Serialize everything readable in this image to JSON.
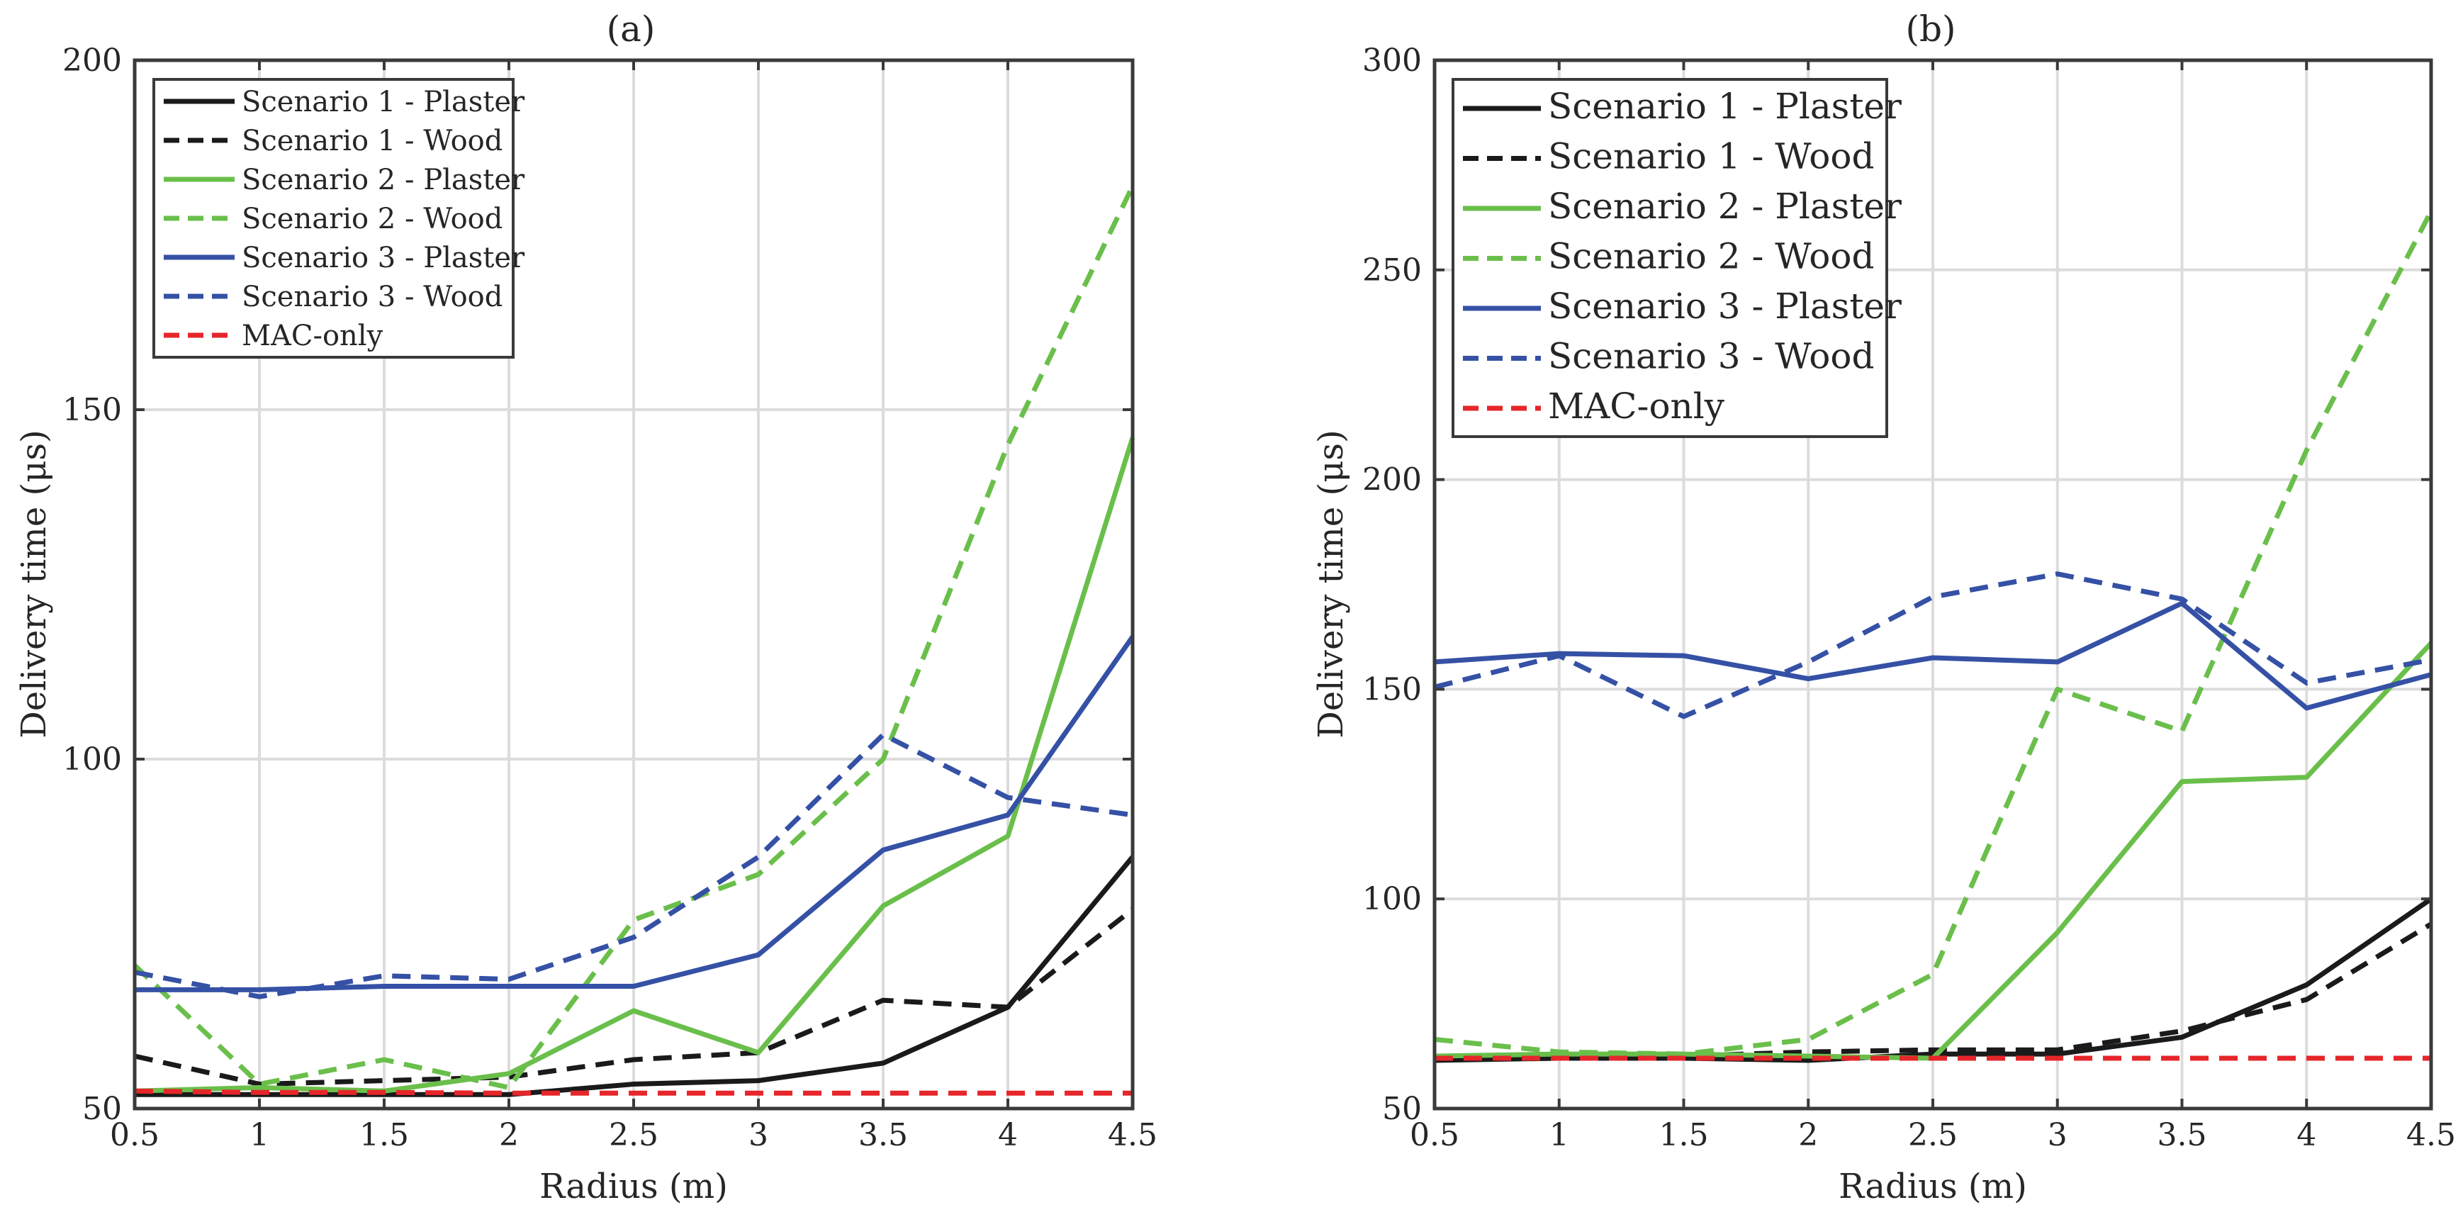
{
  "chart_data": [
    {
      "type": "line",
      "panel": "a",
      "title": "(a)",
      "xlabel": "Radius (m)",
      "ylabel": "Delivery time (μs)",
      "xlim": [
        0.5,
        4.5
      ],
      "ylim": [
        50,
        200
      ],
      "xticks": [
        0.5,
        1,
        1.5,
        2,
        2.5,
        3,
        3.5,
        4,
        4.5
      ],
      "xtick_labels": [
        "0.5",
        "1",
        "1.5",
        "2",
        "2.5",
        "3",
        "3.5",
        "4",
        "4.5"
      ],
      "yticks": [
        50,
        100,
        150,
        200
      ],
      "ytick_labels": [
        "50",
        "100",
        "150",
        "200"
      ],
      "grid": true,
      "legend_position": "top-left",
      "x": [
        0.5,
        1,
        1.5,
        2,
        2.5,
        3,
        3.5,
        4,
        4.5
      ],
      "series": [
        {
          "name": "Scenario 1 - Plaster",
          "color": "#1a1a1a",
          "dash": "solid",
          "values": [
            52,
            52,
            52,
            52,
            53.5,
            54,
            56.5,
            64.5,
            86
          ]
        },
        {
          "name": "Scenario 1 - Wood",
          "color": "#1a1a1a",
          "dash": "dashed",
          "values": [
            57.5,
            53.5,
            54,
            54.5,
            57,
            58,
            65.5,
            64.5,
            78.5
          ]
        },
        {
          "name": "Scenario 2 - Plaster",
          "color": "#6abf4b",
          "dash": "solid",
          "values": [
            52.5,
            53,
            52.5,
            55,
            64,
            58,
            79,
            89,
            146
          ]
        },
        {
          "name": "Scenario 2 - Wood",
          "color": "#6abf4b",
          "dash": "dashed",
          "values": [
            70.5,
            53.5,
            57,
            53,
            77,
            83.5,
            100,
            145,
            182
          ]
        },
        {
          "name": "Scenario 3 - Plaster",
          "color": "#3551a5",
          "dash": "solid",
          "values": [
            67,
            67,
            67.5,
            67.5,
            67.5,
            72,
            87,
            92,
            117.5
          ]
        },
        {
          "name": "Scenario 3 - Wood",
          "color": "#3551a5",
          "dash": "dashed",
          "values": [
            69.5,
            66,
            69,
            68.5,
            74.5,
            86,
            103.5,
            94.5,
            92
          ]
        },
        {
          "name": "MAC-only",
          "color": "#e6262a",
          "dash": "dashed",
          "values": [
            52.5,
            52.3,
            52.3,
            52.2,
            52.2,
            52.2,
            52.2,
            52.2,
            52.2
          ]
        }
      ]
    },
    {
      "type": "line",
      "panel": "b",
      "title": "(b)",
      "xlabel": "Radius (m)",
      "ylabel": "Delivery time (μs)",
      "xlim": [
        0.5,
        4.5
      ],
      "ylim": [
        50,
        300
      ],
      "xticks": [
        0.5,
        1,
        1.5,
        2,
        2.5,
        3,
        3.5,
        4,
        4.5
      ],
      "xtick_labels": [
        "0.5",
        "1",
        "1.5",
        "2",
        "2.5",
        "3",
        "3.5",
        "4",
        "4.5"
      ],
      "yticks": [
        50,
        100,
        150,
        200,
        250,
        300
      ],
      "ytick_labels": [
        "50",
        "100",
        "150",
        "200",
        "250",
        "300"
      ],
      "grid": true,
      "legend_position": "top-left",
      "x": [
        0.5,
        1,
        1.5,
        2,
        2.5,
        3,
        3.5,
        4,
        4.5
      ],
      "series": [
        {
          "name": "Scenario 1 - Plaster",
          "color": "#1a1a1a",
          "dash": "solid",
          "values": [
            61.5,
            62,
            62,
            61.5,
            63,
            63,
            67,
            79.5,
            100
          ]
        },
        {
          "name": "Scenario 1 - Wood",
          "color": "#1a1a1a",
          "dash": "dashed",
          "values": [
            62.5,
            62.5,
            62.5,
            63.5,
            64,
            64,
            68.5,
            76,
            94
          ]
        },
        {
          "name": "Scenario 2 - Plaster",
          "color": "#6abf4b",
          "dash": "solid",
          "values": [
            62.5,
            63,
            63,
            62.5,
            62,
            92,
            128,
            129,
            161
          ]
        },
        {
          "name": "Scenario 2 - Wood",
          "color": "#6abf4b",
          "dash": "dashed",
          "values": [
            66.5,
            63.5,
            63,
            66.5,
            82,
            150,
            140,
            207,
            264
          ]
        },
        {
          "name": "Scenario 3 - Plaster",
          "color": "#3551a5",
          "dash": "solid",
          "values": [
            156.5,
            158.5,
            158,
            152.5,
            157.5,
            156.5,
            170.5,
            145.5,
            153.5
          ]
        },
        {
          "name": "Scenario 3 - Wood",
          "color": "#3551a5",
          "dash": "dashed",
          "values": [
            150.5,
            158,
            143.5,
            156.5,
            172,
            177.5,
            171.5,
            151.5,
            157
          ]
        },
        {
          "name": "MAC-only",
          "color": "#e6262a",
          "dash": "dashed",
          "values": [
            62,
            62,
            62,
            62,
            62,
            62,
            62,
            62,
            62
          ]
        }
      ]
    }
  ]
}
